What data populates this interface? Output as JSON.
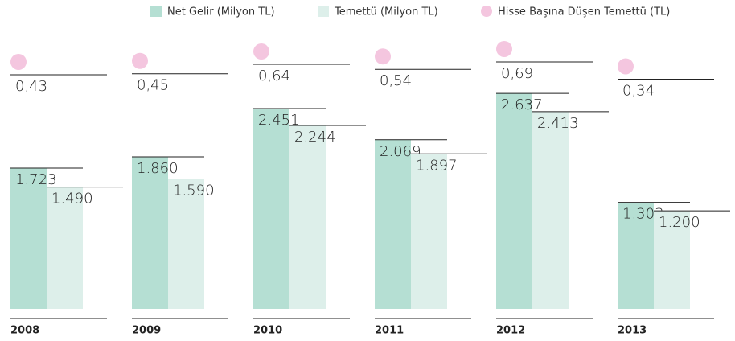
{
  "chart_data": {
    "type": "bar",
    "categories": [
      "2008",
      "2009",
      "2010",
      "2011",
      "2012",
      "2013"
    ],
    "series": [
      {
        "name": "Net Gelir (Milyon TL)",
        "color": "#b5dfd3",
        "values": [
          1723,
          1860,
          2451,
          2069,
          2637,
          1303
        ],
        "value_labels": [
          "1.723",
          "1.860",
          "2.451",
          "2.069",
          "2.637",
          "1.303"
        ]
      },
      {
        "name": "Temettü (Milyon TL)",
        "color": "#ddefea",
        "values": [
          1490,
          1590,
          2244,
          1897,
          2413,
          1200
        ],
        "value_labels": [
          "1.490",
          "1.590",
          "2.244",
          "1.897",
          "2.413",
          "1.200"
        ]
      },
      {
        "name": "Hisse Başına Düşen Temettü (TL)",
        "color": "#f4c6df",
        "values": [
          0.43,
          0.45,
          0.64,
          0.54,
          0.69,
          0.34
        ],
        "value_labels": [
          "0,43",
          "0,45",
          "0,64",
          "0,54",
          "0,69",
          "0,34"
        ]
      }
    ]
  }
}
